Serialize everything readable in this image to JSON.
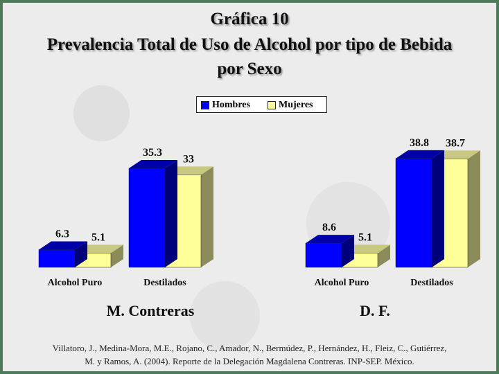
{
  "title": {
    "line1": "Gráfica 10",
    "line2": "Prevalencia Total de Uso de Alcohol por tipo de Bebida",
    "line3": "por Sexo"
  },
  "legend": [
    {
      "label": "Hombres",
      "color": "#0000ff"
    },
    {
      "label": "Mujeres",
      "color": "#ffff99"
    }
  ],
  "chart_data": [
    {
      "type": "bar",
      "title": "M. Contreras",
      "categories": [
        "Alcohol Puro",
        "Destilados"
      ],
      "series": [
        {
          "name": "Hombres",
          "values": [
            6.3,
            35.3
          ],
          "labels": [
            "6.3",
            "35.3"
          ]
        },
        {
          "name": "Mujeres",
          "values": [
            5.1,
            33
          ],
          "labels": [
            "5.1",
            "33"
          ]
        }
      ]
    },
    {
      "type": "bar",
      "title": "D. F.",
      "categories": [
        "Alcohol Puro",
        "Destilados"
      ],
      "series": [
        {
          "name": "Hombres",
          "values": [
            8.6,
            38.8
          ],
          "labels": [
            "8.6",
            "38.8"
          ]
        },
        {
          "name": "Mujeres",
          "values": [
            5.1,
            38.7
          ],
          "labels": [
            "5.1",
            "38.7"
          ]
        }
      ]
    }
  ],
  "footnote": {
    "line1": "Villatoro, J., Medina-Mora, M.E., Rojano, C., Amador, N., Bermúdez, P., Hernández, H., Fleiz, C., Gutiérrez,",
    "line2": "M. y Ramos, A. (2004). Reporte de la Delegación Magdalena Contreras. INP-SEP. México."
  },
  "colors": {
    "hombres_front": "#0000ff",
    "hombres_top": "#0000aa",
    "hombres_side": "#00007a",
    "mujeres_front": "#ffff99",
    "mujeres_top": "#c8c880",
    "mujeres_side": "#8c8c5a"
  }
}
